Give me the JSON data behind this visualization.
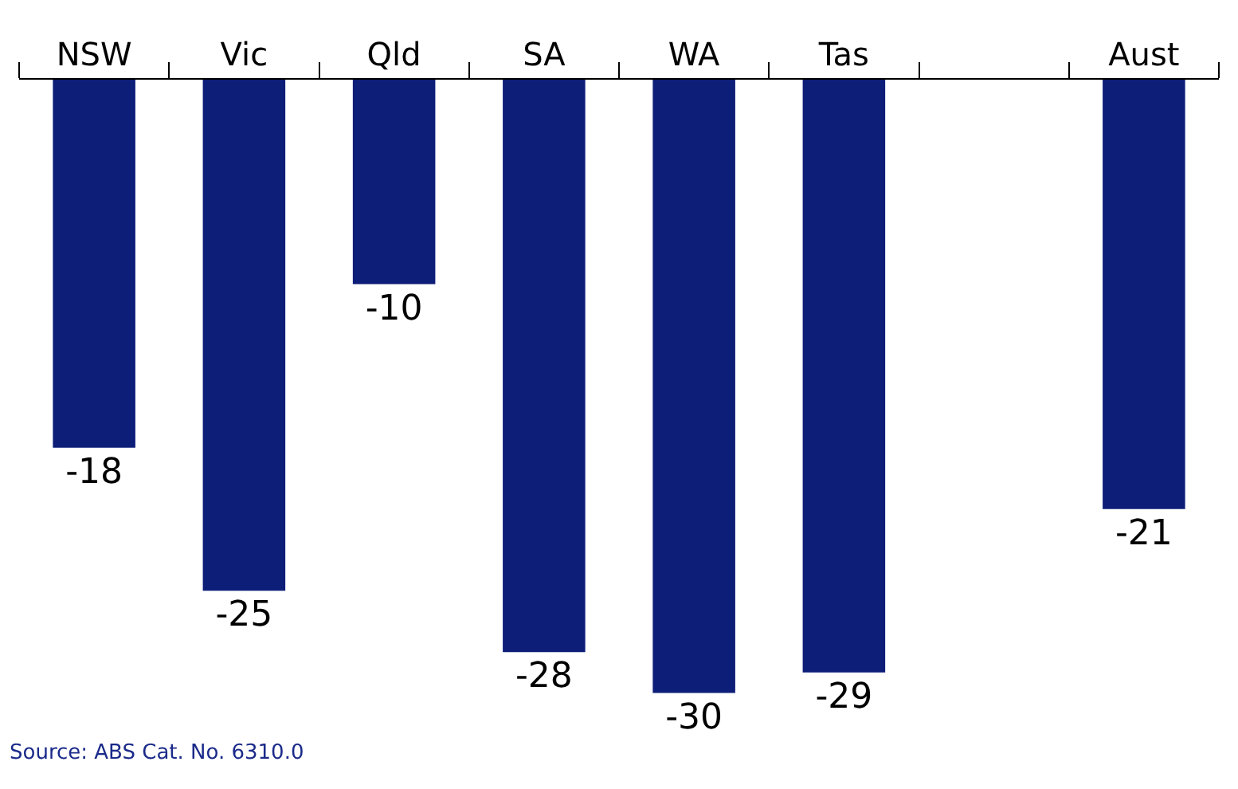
{
  "chart_data": {
    "type": "bar",
    "categories": [
      "NSW",
      "Vic",
      "Qld",
      "SA",
      "WA",
      "Tas",
      null,
      "Aust"
    ],
    "values": [
      -18,
      -25,
      -10,
      -28,
      -30,
      -29,
      null,
      -21
    ],
    "color": "#0d1e78",
    "data_labels": true,
    "annotations": [
      "Source: ABS Cat. No. 6310.0"
    ]
  }
}
